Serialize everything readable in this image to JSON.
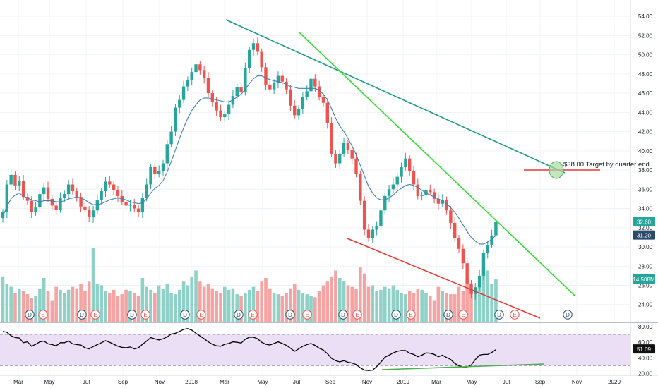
{
  "colors": {
    "up": "#26a69a",
    "down": "#ef5350",
    "up_vol": "#8fd1c7",
    "down_vol": "#f5a3a3",
    "ma": "#3f7fb5",
    "trend_teal": "#1e9a86",
    "trend_green": "#33dd33",
    "trend_red": "#e53935",
    "target_line": "#e53935",
    "rsi_line": "#000000",
    "rsi_band": "#eadff5",
    "rsi_green": "#4caf50",
    "price_line": "#5bc4a8",
    "label_teal": "#26a69a",
    "label_dark": "#2b4a6b"
  },
  "annotation": {
    "text": "$38.00 Target by quarter end"
  },
  "price_axis_labels": [
    "54.00",
    "52.00",
    "50.00",
    "48.00",
    "46.00",
    "44.00",
    "42.00",
    "40.00",
    "38.00",
    "36.00",
    "34.00",
    "32.00",
    "30.00",
    "28.00",
    "26.00",
    "24.00"
  ],
  "price_badges": {
    "last_price": "32.60",
    "ma_value": "31.20",
    "volume": "14.508M"
  },
  "rsi_axis_labels": [
    "80.00",
    "60.00",
    "40.00",
    "20.00"
  ],
  "rsi_badge": "51.09",
  "time_axis_labels": [
    "Mar",
    "May",
    "Jul",
    "Sep",
    "Nov",
    "2018",
    "Mar",
    "May",
    "Jul",
    "Sep",
    "Nov",
    "2019",
    "Mar",
    "May",
    "Jul",
    "Sep",
    "Nov",
    "2020"
  ],
  "event_markers": [
    "D",
    "E",
    "D",
    "E",
    "D",
    "E",
    "D",
    "E",
    "D",
    "E",
    "D",
    "E",
    "D",
    "E",
    "D",
    "E",
    "D",
    "E",
    "D",
    "E",
    "D",
    "E",
    "E"
  ],
  "chart_data": [
    {
      "type": "candlestick",
      "title": "",
      "y_range": [
        22.5,
        55
      ],
      "close_series": [
        33.6,
        36.5,
        37.5,
        36.4,
        36.9,
        35.2,
        34.8,
        33.6,
        34.1,
        35.5,
        36.2,
        35.0,
        34.3,
        33.9,
        35.1,
        35.5,
        36.5,
        35.8,
        35.2,
        34.2,
        33.9,
        33.1,
        33.8,
        34.9,
        35.8,
        36.8,
        36.5,
        35.9,
        35.3,
        34.7,
        34.3,
        34.4,
        34.0,
        33.6,
        35.1,
        36.5,
        38.3,
        37.6,
        37.9,
        38.7,
        40.7,
        42.0,
        44.5,
        45.3,
        46.7,
        47.4,
        48.2,
        49.0,
        48.4,
        47.6,
        46.0,
        45.1,
        44.2,
        43.5,
        43.8,
        44.8,
        45.7,
        46.6,
        46.1,
        48.6,
        50.5,
        51.2,
        50.3,
        48.7,
        46.9,
        46.4,
        47.1,
        47.8,
        47.2,
        46.4,
        44.7,
        43.7,
        44.4,
        45.6,
        46.2,
        47.5,
        46.7,
        45.6,
        45.0,
        42.9,
        39.7,
        38.7,
        39.7,
        40.8,
        40.1,
        39.2,
        37.6,
        34.8,
        31.8,
        30.9,
        31.8,
        32.2,
        33.8,
        35.3,
        36.0,
        36.5,
        37.3,
        38.3,
        39.2,
        37.9,
        36.5,
        35.3,
        35.4,
        35.9,
        35.7,
        35.0,
        34.5,
        34.9,
        33.8,
        32.5,
        30.9,
        29.8,
        28.3,
        26.2,
        25.1,
        25.8,
        27.0,
        29.4,
        30.2,
        31.2,
        32.6
      ],
      "ma_series": [
        33.2,
        34.2,
        35.0,
        35.4,
        35.6,
        35.3,
        35.1,
        34.9,
        34.8,
        34.7,
        34.8,
        34.8,
        34.8,
        34.7,
        34.7,
        34.8,
        35.0,
        35.1,
        35.2,
        35.1,
        34.9,
        34.6,
        34.4,
        34.4,
        34.5,
        34.7,
        34.9,
        35.0,
        35.1,
        35.0,
        34.9,
        34.7,
        34.6,
        34.5,
        34.6,
        35.0,
        35.6,
        36.1,
        36.4,
        36.9,
        37.8,
        38.9,
        40.1,
        41.3,
        42.4,
        43.4,
        44.2,
        44.8,
        45.3,
        45.5,
        45.5,
        45.4,
        45.3,
        45.2,
        45.1,
        45.1,
        45.3,
        45.6,
        45.9,
        46.4,
        47.0,
        47.5,
        47.8,
        47.8,
        47.6,
        47.4,
        47.3,
        47.2,
        47.1,
        46.9,
        46.7,
        46.6,
        46.5,
        46.5,
        46.5,
        46.5,
        46.5,
        46.3,
        45.9,
        45.3,
        44.4,
        43.4,
        42.6,
        42.0,
        41.3,
        40.5,
        39.6,
        38.5,
        37.4,
        36.3,
        35.6,
        35.1,
        34.9,
        34.9,
        35.1,
        35.4,
        35.8,
        36.1,
        36.4,
        36.5,
        36.4,
        36.2,
        35.9,
        35.6,
        35.4,
        35.2,
        35.0,
        34.8,
        34.5,
        34.1,
        33.6,
        33.0,
        32.3,
        31.6,
        31.0,
        30.6,
        30.3,
        30.3,
        30.5,
        30.8,
        31.2
      ],
      "volume_series": [
        0.62,
        0.52,
        0.48,
        0.4,
        0.45,
        0.42,
        0.38,
        0.33,
        0.36,
        0.45,
        0.6,
        0.42,
        0.3,
        0.48,
        0.44,
        0.4,
        0.44,
        0.48,
        0.46,
        0.52,
        0.43,
        0.55,
        1.0,
        0.52,
        0.5,
        0.42,
        0.4,
        0.44,
        0.36,
        0.38,
        0.44,
        0.42,
        0.4,
        0.36,
        0.6,
        0.48,
        0.44,
        0.4,
        0.5,
        0.45,
        0.52,
        0.4,
        0.38,
        0.44,
        0.55,
        0.5,
        0.62,
        0.7,
        0.55,
        0.48,
        0.52,
        0.46,
        0.42,
        0.4,
        0.48,
        0.44,
        0.46,
        0.38,
        0.36,
        0.4,
        0.44,
        0.48,
        0.42,
        0.55,
        0.6,
        0.46,
        0.4,
        0.38,
        0.36,
        0.4,
        0.46,
        0.52,
        0.44,
        0.4,
        0.38,
        0.36,
        0.34,
        0.42,
        0.5,
        0.55,
        0.62,
        0.7,
        0.6,
        0.56,
        0.5,
        0.48,
        0.45,
        0.75,
        0.66,
        0.48,
        0.5,
        0.42,
        0.44,
        0.48,
        0.46,
        0.5,
        0.44,
        0.4,
        0.38,
        0.42,
        0.4,
        0.45,
        0.44,
        0.4,
        0.36,
        0.3,
        0.48,
        0.42,
        0.4,
        0.38,
        0.38,
        0.48,
        0.42,
        0.6,
        0.48,
        0.42,
        0.48,
        0.72,
        0.7,
        0.52,
        0.58
      ]
    },
    {
      "type": "line",
      "title": "",
      "y_range": [
        20,
        80
      ],
      "series": [
        {
          "values": [
            74.0,
            72.8,
            68.5,
            66.0,
            65.5,
            59.5,
            60.5,
            55.0,
            57.5,
            60.5,
            61.5,
            58.0,
            57.0,
            55.5,
            59.5,
            59.5,
            61.5,
            58.0,
            57.0,
            56.5,
            53.0,
            51.5,
            54.5,
            57.0,
            59.5,
            62.0,
            60.0,
            57.5,
            55.0,
            53.5,
            53.0,
            54.0,
            51.5,
            53.0,
            57.5,
            61.5,
            66.0,
            64.5,
            63.0,
            64.5,
            67.0,
            70.5,
            71.5,
            74.0,
            76.5,
            77.5,
            75.5,
            71.5,
            68.0,
            64.5,
            60.5,
            57.5,
            55.5,
            55.0,
            57.5,
            58.5,
            60.5,
            60.0,
            59.0,
            64.0,
            66.5,
            66.5,
            64.5,
            60.0,
            57.5,
            56.5,
            58.5,
            60.5,
            58.5,
            56.0,
            52.5,
            48.5,
            51.5,
            55.0,
            57.0,
            58.5,
            56.0,
            52.5,
            50.0,
            45.5,
            39.5,
            36.5,
            35.0,
            36.5,
            34.5,
            33.5,
            31.5,
            27.5,
            24.5,
            24.0,
            24.5,
            29.0,
            34.5,
            41.0,
            43.5,
            46.5,
            48.5,
            49.5,
            49.5,
            46.0,
            44.5,
            41.5,
            43.5,
            46.5,
            46.0,
            44.5,
            41.5,
            43.5,
            40.5,
            38.0,
            33.0,
            30.0,
            28.5,
            28.5,
            31.0,
            38.0,
            43.5,
            44.5,
            44.5,
            47.0,
            50.5
          ]
        }
      ]
    }
  ]
}
